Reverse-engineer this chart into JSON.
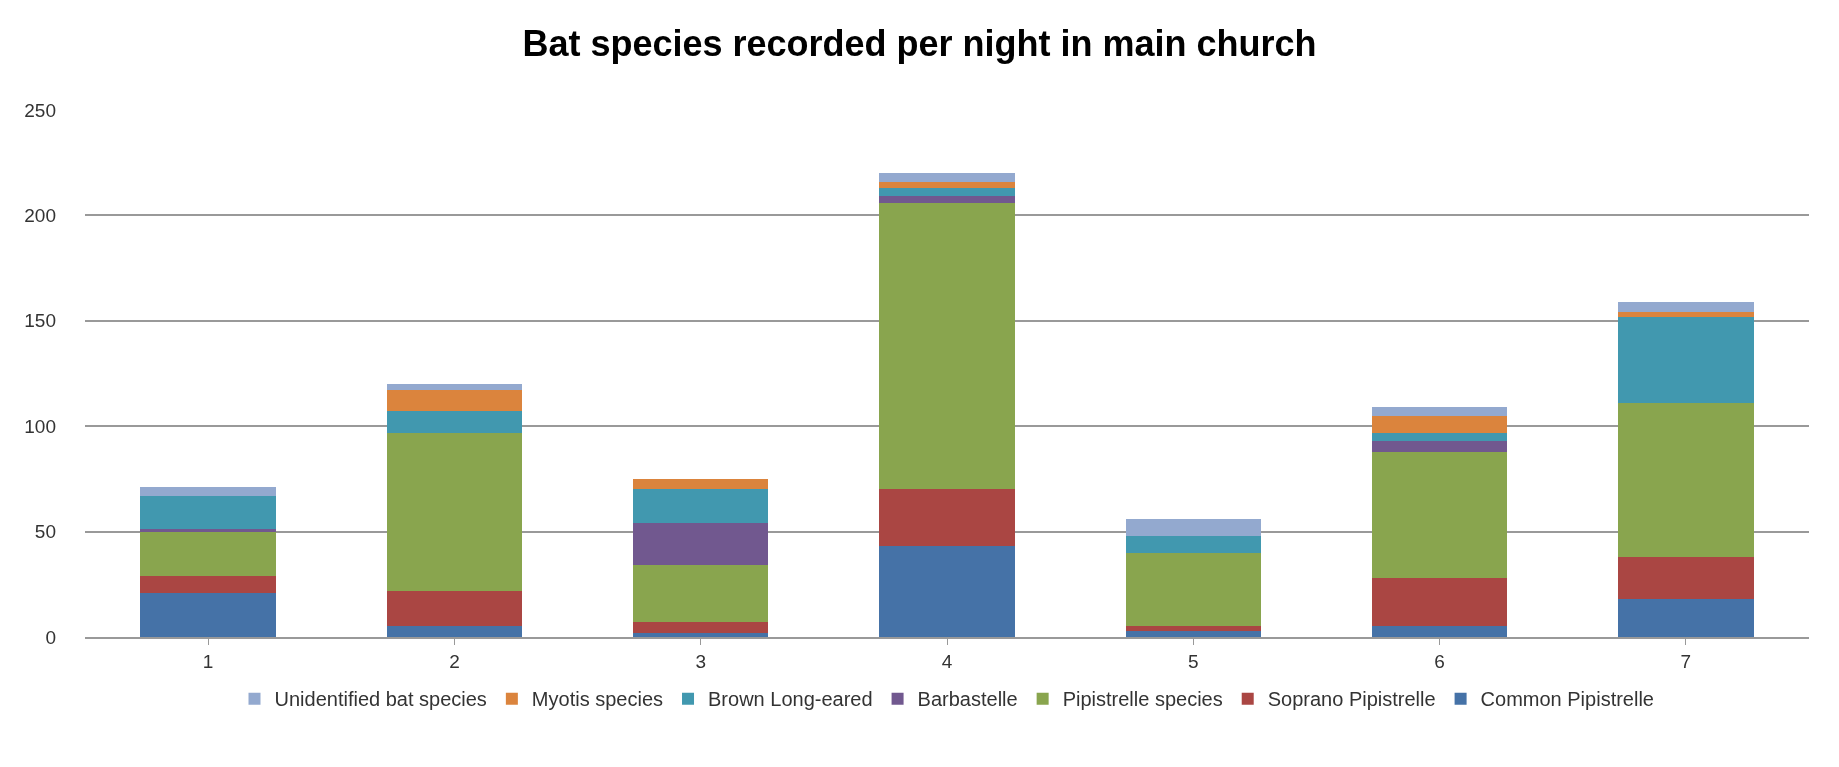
{
  "chart_data": {
    "type": "bar",
    "title": "Bat species recorded per night in main church",
    "stacked": true,
    "categories": [
      "1",
      "2",
      "3",
      "4",
      "5",
      "6",
      "7"
    ],
    "series": [
      {
        "name": "Common Pipistrelle",
        "color": "#4572a7",
        "values": [
          21,
          5,
          2,
          43,
          3,
          5,
          18
        ]
      },
      {
        "name": "Soprano Pipistrelle",
        "color": "#aa4643",
        "values": [
          8,
          17,
          5,
          27,
          2,
          23,
          20
        ]
      },
      {
        "name": "Pipistrelle species",
        "color": "#89a54e",
        "values": [
          21,
          75,
          27,
          136,
          35,
          60,
          73
        ]
      },
      {
        "name": "Barbastelle",
        "color": "#71588f",
        "values": [
          1,
          0,
          20,
          3,
          0,
          5,
          0
        ]
      },
      {
        "name": "Brown Long-eared",
        "color": "#4198af",
        "values": [
          16,
          10,
          16,
          4,
          8,
          4,
          41
        ]
      },
      {
        "name": "Myotis species",
        "color": "#db843d",
        "values": [
          0,
          10,
          5,
          3,
          0,
          8,
          2
        ]
      },
      {
        "name": "Unidentified bat species",
        "color": "#93a9cf",
        "values": [
          4,
          3,
          0,
          4,
          8,
          4,
          5
        ]
      }
    ],
    "ylim": [
      0,
      250
    ],
    "yticks": [
      0,
      50,
      100,
      150,
      200,
      250
    ],
    "grid": "y",
    "legend": "bottom"
  }
}
